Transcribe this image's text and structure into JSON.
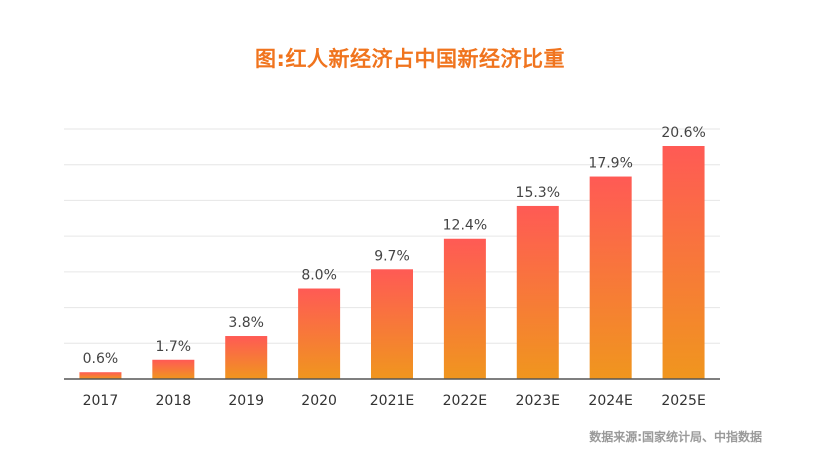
{
  "chart_data": {
    "type": "bar",
    "title": "图:红人新经济占中国新经济比重",
    "categories": [
      "2017",
      "2018",
      "2019",
      "2020",
      "2021E",
      "2022E",
      "2023E",
      "2024E",
      "2025E"
    ],
    "values": [
      0.6,
      1.7,
      3.8,
      8.0,
      9.7,
      12.4,
      15.3,
      17.9,
      20.6
    ],
    "value_labels": [
      "0.6%",
      "1.7%",
      "3.8%",
      "8.0%",
      "9.7%",
      "12.4%",
      "15.3%",
      "17.9%",
      "20.6%"
    ],
    "ylim": [
      0,
      21
    ],
    "grid": true,
    "legend": "none",
    "colors": {
      "bar_top": "#ff5a55",
      "bar_bottom": "#f0961e",
      "title": "#f0741e",
      "grid": "#e6e6e6",
      "axis": "#555555"
    }
  },
  "source": "数据来源:国家统计局、中指数据"
}
